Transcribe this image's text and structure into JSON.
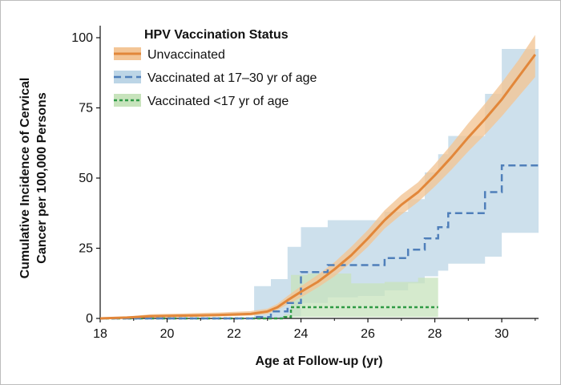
{
  "chart_data": {
    "type": "line",
    "xlabel": "Age at Follow-up (yr)",
    "ylabel_line1": "Cumulative Incidence of Cervical",
    "ylabel_line2": "Cancer per 100,000 Persons",
    "xlim": [
      18,
      31.1
    ],
    "ylim": [
      0,
      100
    ],
    "xticks": [
      18,
      20,
      22,
      24,
      26,
      28,
      30
    ],
    "yticks": [
      0,
      25,
      50,
      75,
      100
    ],
    "legend": {
      "title": "HPV Vaccination Status",
      "placement": "top-left",
      "entries": [
        "Unvaccinated",
        "Vaccinated at 17–30 yr of age",
        "Vaccinated <17 yr of age"
      ]
    },
    "series": [
      {
        "name": "Unvaccinated",
        "color": "#e2873a",
        "band_color": "#f3c596",
        "style": "solid",
        "x": [
          18,
          18.8,
          19.5,
          20.5,
          21.5,
          22.5,
          23.0,
          23.3,
          23.6,
          24.0,
          24.5,
          25.0,
          25.5,
          26.0,
          26.5,
          27.0,
          27.5,
          28.0,
          28.5,
          29.0,
          29.5,
          30.0,
          30.5,
          31.0
        ],
        "y": [
          0,
          0.3,
          0.8,
          1.0,
          1.2,
          1.6,
          2.5,
          4.0,
          6.5,
          9.5,
          13.0,
          17.5,
          22.5,
          28.5,
          35.0,
          40.5,
          45.0,
          51.0,
          57.5,
          64.5,
          71.0,
          78.0,
          86.0,
          94.0
        ],
        "ci_low": [
          0,
          0.1,
          0.4,
          0.5,
          0.7,
          1.0,
          1.6,
          3.0,
          5.0,
          7.5,
          11.0,
          15.0,
          20.0,
          25.5,
          32.0,
          37.0,
          41.5,
          47.0,
          53.0,
          59.5,
          65.5,
          72.0,
          79.0,
          86.0
        ],
        "ci_high": [
          0,
          0.6,
          1.5,
          1.8,
          2.1,
          2.6,
          3.5,
          5.2,
          8.0,
          11.5,
          15.5,
          20.0,
          25.5,
          31.5,
          38.5,
          44.0,
          48.5,
          55.0,
          62.0,
          69.5,
          76.5,
          84.0,
          92.0,
          101.0
        ]
      },
      {
        "name": "Vaccinated at 17–30 yr of age",
        "color": "#4f7fba",
        "band_color": "#bcd5e6",
        "style": "dashed",
        "step_x": [
          18,
          22.6,
          23.1,
          23.6,
          24.0,
          24.8,
          25.7,
          26.5,
          27.2,
          27.7,
          28.1,
          28.4,
          29.5,
          30.0,
          31.1
        ],
        "step_y": [
          0,
          0.5,
          2.5,
          5.5,
          16.5,
          19.0,
          19.0,
          21.5,
          24.5,
          28.5,
          32.5,
          37.5,
          45.0,
          54.5,
          54.5
        ],
        "band_low": [
          0,
          0.0,
          0.2,
          0.8,
          5.5,
          7.5,
          8.0,
          10.0,
          12.5,
          15.0,
          17.0,
          19.5,
          22.0,
          30.5,
          30.5
        ],
        "band_high": [
          0,
          11.5,
          14.0,
          25.5,
          32.5,
          35.0,
          35.0,
          38.0,
          42.5,
          52.0,
          58.5,
          65.0,
          80.0,
          96.0,
          96.0
        ]
      },
      {
        "name": "Vaccinated <17 yr of age",
        "color": "#2f9a45",
        "band_color": "#c7e3bc",
        "style": "dashed",
        "step_x": [
          18,
          23.5,
          23.7,
          24.2,
          25.5,
          26.5,
          27.5,
          28.1
        ],
        "step_y": [
          0,
          0.5,
          4.0,
          4.0,
          4.0,
          4.0,
          4.0,
          4.0
        ],
        "band_low": [
          0,
          0,
          0.5,
          0.5,
          0.5,
          0.5,
          0.5,
          0.5
        ],
        "band_high": [
          0,
          1.5,
          15.5,
          16.0,
          12.5,
          13.0,
          14.5,
          16.0
        ]
      }
    ]
  }
}
